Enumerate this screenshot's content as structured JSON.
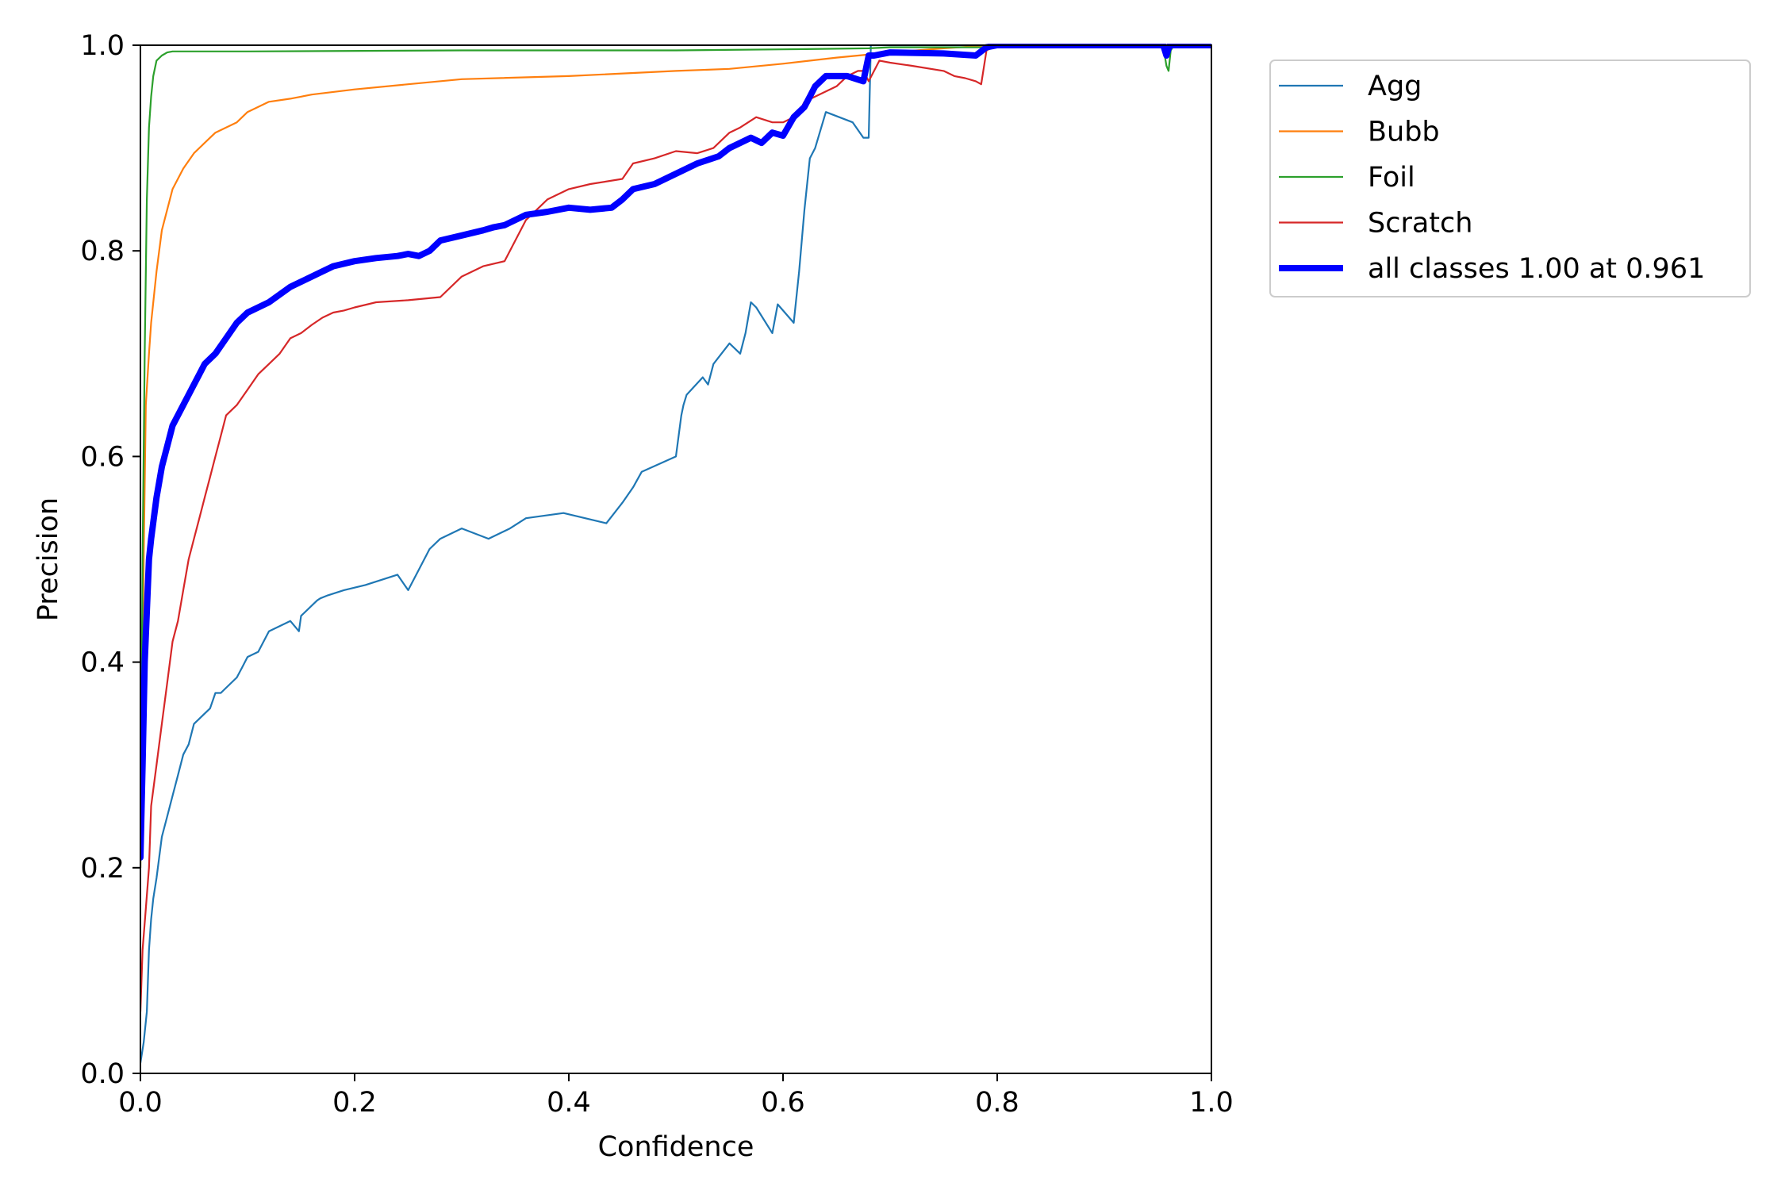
{
  "chart_data": {
    "type": "line",
    "title": "",
    "xlabel": "Confidence",
    "ylabel": "Precision",
    "xlim": [
      0.0,
      1.0
    ],
    "ylim": [
      0.0,
      1.0
    ],
    "x_ticks": [
      "0.0",
      "0.2",
      "0.4",
      "0.6",
      "0.8",
      "1.0"
    ],
    "y_ticks": [
      "0.0",
      "0.2",
      "0.4",
      "0.6",
      "0.8",
      "1.0"
    ],
    "grid": false,
    "legend_position": "outside-right-top",
    "series": [
      {
        "name": "Agg",
        "color": "#1f77b4",
        "x": [
          0.0,
          0.003,
          0.006,
          0.008,
          0.01,
          0.012,
          0.015,
          0.02,
          0.025,
          0.03,
          0.035,
          0.04,
          0.045,
          0.05,
          0.055,
          0.06,
          0.065,
          0.07,
          0.075,
          0.08,
          0.09,
          0.095,
          0.1,
          0.11,
          0.12,
          0.13,
          0.14,
          0.148,
          0.15,
          0.165,
          0.168,
          0.175,
          0.19,
          0.21,
          0.24,
          0.25,
          0.26,
          0.27,
          0.28,
          0.3,
          0.325,
          0.345,
          0.36,
          0.395,
          0.435,
          0.45,
          0.46,
          0.468,
          0.5,
          0.505,
          0.507,
          0.51,
          0.525,
          0.53,
          0.535,
          0.55,
          0.56,
          0.565,
          0.57,
          0.575,
          0.59,
          0.595,
          0.61,
          0.615,
          0.62,
          0.625,
          0.63,
          0.64,
          0.665,
          0.675,
          0.68,
          0.682,
          0.69,
          0.75,
          0.8,
          0.85,
          0.9,
          0.95,
          0.96,
          1.0
        ],
        "y": [
          0.01,
          0.03,
          0.06,
          0.12,
          0.15,
          0.17,
          0.19,
          0.23,
          0.25,
          0.27,
          0.29,
          0.31,
          0.32,
          0.34,
          0.345,
          0.35,
          0.355,
          0.37,
          0.37,
          0.375,
          0.385,
          0.395,
          0.405,
          0.41,
          0.43,
          0.435,
          0.44,
          0.43,
          0.445,
          0.46,
          0.462,
          0.465,
          0.47,
          0.475,
          0.485,
          0.47,
          0.49,
          0.51,
          0.52,
          0.53,
          0.52,
          0.53,
          0.54,
          0.545,
          0.535,
          0.555,
          0.57,
          0.585,
          0.6,
          0.64,
          0.65,
          0.66,
          0.677,
          0.67,
          0.69,
          0.71,
          0.7,
          0.72,
          0.75,
          0.745,
          0.72,
          0.748,
          0.73,
          0.78,
          0.84,
          0.89,
          0.9,
          0.935,
          0.925,
          0.91,
          0.91,
          1.0,
          1.0,
          1.0,
          1.0,
          1.0,
          1.0,
          1.0,
          1.0,
          1.0
        ]
      },
      {
        "name": "Bubb",
        "color": "#ff7f0e",
        "x": [
          0.0,
          0.003,
          0.005,
          0.008,
          0.01,
          0.015,
          0.02,
          0.03,
          0.04,
          0.05,
          0.06,
          0.07,
          0.08,
          0.09,
          0.1,
          0.12,
          0.14,
          0.16,
          0.2,
          0.25,
          0.3,
          0.4,
          0.5,
          0.55,
          0.6,
          0.65,
          0.7,
          0.75,
          0.78,
          0.8,
          0.9,
          1.0
        ],
        "y": [
          0.2,
          0.5,
          0.65,
          0.7,
          0.73,
          0.78,
          0.82,
          0.86,
          0.88,
          0.895,
          0.905,
          0.915,
          0.92,
          0.925,
          0.935,
          0.945,
          0.948,
          0.952,
          0.957,
          0.962,
          0.967,
          0.97,
          0.975,
          0.977,
          0.982,
          0.988,
          0.993,
          0.997,
          0.999,
          1.0,
          1.0,
          1.0
        ]
      },
      {
        "name": "Foil",
        "color": "#2ca02c",
        "x": [
          0.0,
          0.002,
          0.004,
          0.006,
          0.008,
          0.01,
          0.012,
          0.015,
          0.02,
          0.025,
          0.03,
          0.1,
          0.3,
          0.5,
          0.6,
          0.68,
          0.7,
          0.8,
          0.9,
          0.955,
          0.958,
          0.96,
          0.962,
          0.965,
          1.0
        ],
        "y": [
          0.2,
          0.5,
          0.7,
          0.85,
          0.92,
          0.95,
          0.97,
          0.985,
          0.99,
          0.993,
          0.994,
          0.994,
          0.995,
          0.995,
          0.996,
          0.997,
          0.998,
          0.998,
          0.999,
          0.999,
          0.98,
          0.975,
          0.995,
          1.0,
          1.0
        ]
      },
      {
        "name": "Scratch",
        "color": "#d62728",
        "x": [
          0.0,
          0.002,
          0.005,
          0.008,
          0.01,
          0.015,
          0.02,
          0.025,
          0.03,
          0.035,
          0.04,
          0.045,
          0.05,
          0.055,
          0.06,
          0.065,
          0.07,
          0.075,
          0.08,
          0.09,
          0.1,
          0.11,
          0.12,
          0.13,
          0.14,
          0.15,
          0.16,
          0.17,
          0.18,
          0.19,
          0.2,
          0.22,
          0.25,
          0.28,
          0.3,
          0.32,
          0.34,
          0.35,
          0.36,
          0.37,
          0.38,
          0.4,
          0.42,
          0.45,
          0.46,
          0.48,
          0.5,
          0.52,
          0.535,
          0.55,
          0.56,
          0.575,
          0.59,
          0.6,
          0.61,
          0.615,
          0.62,
          0.63,
          0.65,
          0.66,
          0.67,
          0.675,
          0.68,
          0.69,
          0.7,
          0.72,
          0.75,
          0.76,
          0.77,
          0.78,
          0.785,
          0.79,
          0.8,
          1.0
        ],
        "y": [
          0.06,
          0.12,
          0.16,
          0.2,
          0.26,
          0.3,
          0.34,
          0.38,
          0.42,
          0.44,
          0.47,
          0.5,
          0.52,
          0.54,
          0.56,
          0.58,
          0.6,
          0.62,
          0.64,
          0.65,
          0.665,
          0.68,
          0.69,
          0.7,
          0.715,
          0.72,
          0.728,
          0.735,
          0.74,
          0.742,
          0.745,
          0.75,
          0.752,
          0.755,
          0.775,
          0.785,
          0.79,
          0.81,
          0.83,
          0.84,
          0.85,
          0.86,
          0.865,
          0.87,
          0.885,
          0.89,
          0.897,
          0.895,
          0.9,
          0.915,
          0.92,
          0.93,
          0.925,
          0.925,
          0.93,
          0.935,
          0.945,
          0.95,
          0.96,
          0.97,
          0.975,
          0.975,
          0.965,
          0.985,
          0.983,
          0.98,
          0.975,
          0.97,
          0.968,
          0.965,
          0.962,
          0.995,
          1.0,
          1.0
        ]
      },
      {
        "name": "all classes 1.00 at 0.961",
        "color": "#0000ff",
        "x": [
          0.0,
          0.002,
          0.004,
          0.006,
          0.008,
          0.01,
          0.015,
          0.02,
          0.025,
          0.03,
          0.04,
          0.05,
          0.06,
          0.07,
          0.08,
          0.09,
          0.1,
          0.12,
          0.14,
          0.16,
          0.18,
          0.2,
          0.22,
          0.24,
          0.25,
          0.26,
          0.27,
          0.28,
          0.3,
          0.32,
          0.33,
          0.34,
          0.35,
          0.36,
          0.38,
          0.4,
          0.42,
          0.44,
          0.45,
          0.46,
          0.48,
          0.5,
          0.52,
          0.54,
          0.55,
          0.56,
          0.57,
          0.58,
          0.59,
          0.6,
          0.61,
          0.62,
          0.625,
          0.63,
          0.64,
          0.66,
          0.675,
          0.68,
          0.685,
          0.7,
          0.75,
          0.78,
          0.79,
          0.8,
          0.9,
          0.955,
          0.958,
          0.961,
          0.965,
          1.0
        ],
        "y": [
          0.21,
          0.3,
          0.4,
          0.45,
          0.5,
          0.52,
          0.56,
          0.59,
          0.61,
          0.63,
          0.65,
          0.67,
          0.69,
          0.7,
          0.715,
          0.73,
          0.74,
          0.75,
          0.765,
          0.775,
          0.785,
          0.79,
          0.793,
          0.795,
          0.797,
          0.795,
          0.8,
          0.81,
          0.815,
          0.82,
          0.823,
          0.825,
          0.83,
          0.835,
          0.838,
          0.842,
          0.84,
          0.842,
          0.85,
          0.86,
          0.865,
          0.875,
          0.885,
          0.892,
          0.9,
          0.905,
          0.91,
          0.905,
          0.915,
          0.912,
          0.93,
          0.94,
          0.95,
          0.96,
          0.97,
          0.97,
          0.965,
          0.99,
          0.99,
          0.993,
          0.992,
          0.99,
          0.998,
          1.0,
          1.0,
          1.0,
          0.99,
          1.0,
          1.0,
          1.0
        ]
      }
    ]
  }
}
